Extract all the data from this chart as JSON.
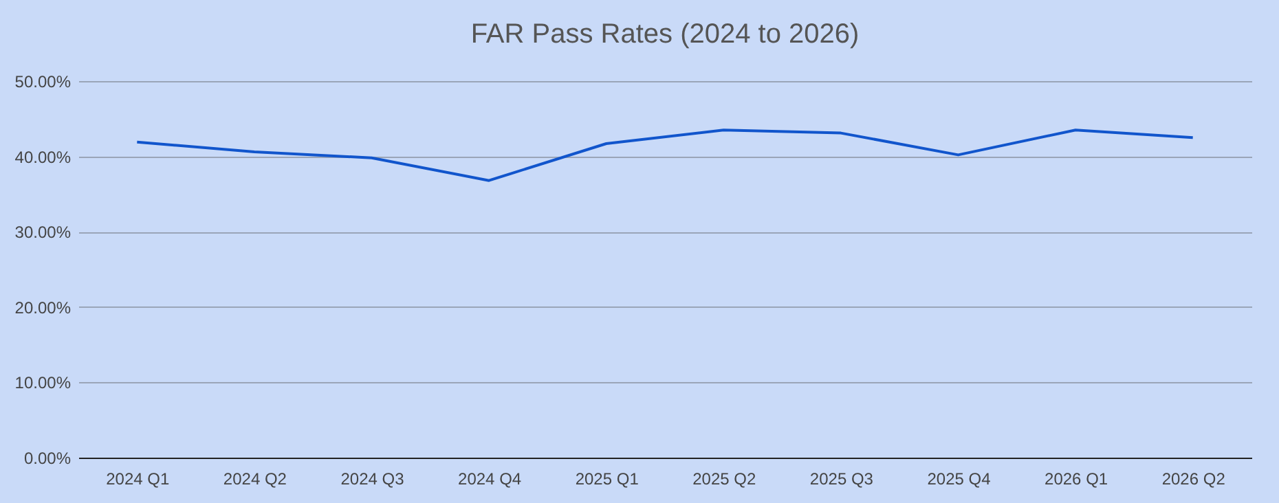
{
  "chart_data": {
    "type": "line",
    "title": "FAR Pass Rates (2024 to 2026)",
    "categories": [
      "2024 Q1",
      "2024 Q2",
      "2024 Q3",
      "2024 Q4",
      "2025 Q1",
      "2025 Q2",
      "2025 Q3",
      "2025 Q4",
      "2026 Q1",
      "2026 Q2"
    ],
    "series": [
      {
        "color": "#1155cc",
        "values": [
          41.9,
          40.6,
          39.8,
          36.8,
          41.7,
          43.5,
          43.1,
          40.2,
          43.5,
          42.5
        ]
      }
    ],
    "ylim": [
      0,
      50
    ],
    "yticks": [
      {
        "value": 0,
        "label": "0.00%"
      },
      {
        "value": 10,
        "label": "10.00%"
      },
      {
        "value": 20,
        "label": "20.00%"
      },
      {
        "value": 30,
        "label": "30.00%"
      },
      {
        "value": 40,
        "label": "40.00%"
      },
      {
        "value": 50,
        "label": "50.00%"
      }
    ],
    "grid": "y",
    "legend": false,
    "marker": "none",
    "line_style": "solid"
  }
}
